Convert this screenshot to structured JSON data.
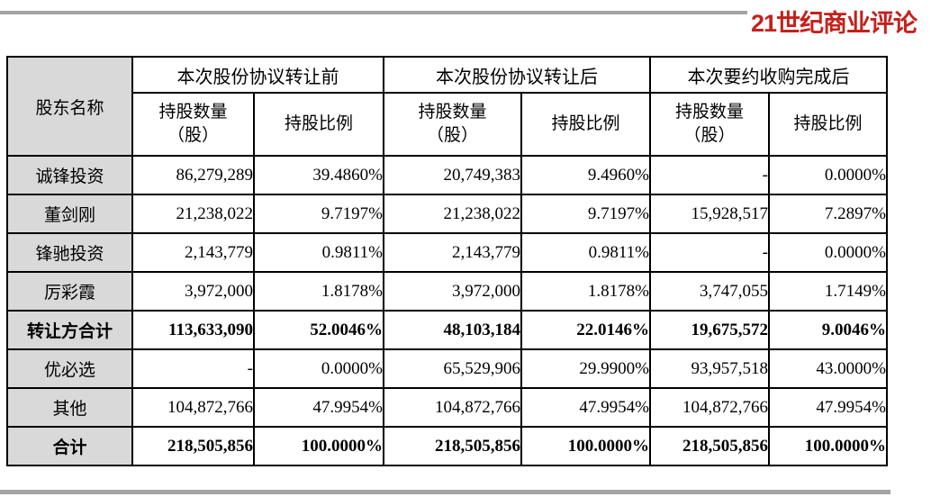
{
  "page": {
    "logo_text": "21世纪商业评论",
    "colors": {
      "logo_red": "#c4211c",
      "rule_gray": "#a3a3a3",
      "name_column_bg": "#d9d9d9",
      "border": "#000000"
    }
  },
  "table": {
    "shareholder_col_header": "股东名称",
    "group_headers": [
      "本次股份协议转让前",
      "本次股份协议转让后",
      "本次要约收购完成后"
    ],
    "sub_headers": {
      "quantity_line1": "持股数量",
      "quantity_line2": "（股）",
      "ratio": "持股比例"
    },
    "rows": [
      {
        "name": "诚锋投资",
        "bold": false,
        "values": [
          "86,279,289",
          "39.4860%",
          "20,749,383",
          "9.4960%",
          "-",
          "0.0000%"
        ]
      },
      {
        "name": "董剑刚",
        "bold": false,
        "values": [
          "21,238,022",
          "9.7197%",
          "21,238,022",
          "9.7197%",
          "15,928,517",
          "7.2897%"
        ]
      },
      {
        "name": "锋驰投资",
        "bold": false,
        "values": [
          "2,143,779",
          "0.9811%",
          "2,143,779",
          "0.9811%",
          "-",
          "0.0000%"
        ]
      },
      {
        "name": "厉彩霞",
        "bold": false,
        "values": [
          "3,972,000",
          "1.8178%",
          "3,972,000",
          "1.8178%",
          "3,747,055",
          "1.7149%"
        ]
      },
      {
        "name": "转让方合计",
        "bold": true,
        "values": [
          "113,633,090",
          "52.0046%",
          "48,103,184",
          "22.0146%",
          "19,675,572",
          "9.0046%"
        ]
      },
      {
        "name": "优必选",
        "bold": false,
        "values": [
          "-",
          "0.0000%",
          "65,529,906",
          "29.9900%",
          "93,957,518",
          "43.0000%"
        ]
      },
      {
        "name": "其他",
        "bold": false,
        "values": [
          "104,872,766",
          "47.9954%",
          "104,872,766",
          "47.9954%",
          "104,872,766",
          "47.9954%"
        ]
      },
      {
        "name": "合计",
        "bold": true,
        "values": [
          "218,505,856",
          "100.0000%",
          "218,505,856",
          "100.0000%",
          "218,505,856",
          "100.0000%"
        ]
      }
    ]
  }
}
